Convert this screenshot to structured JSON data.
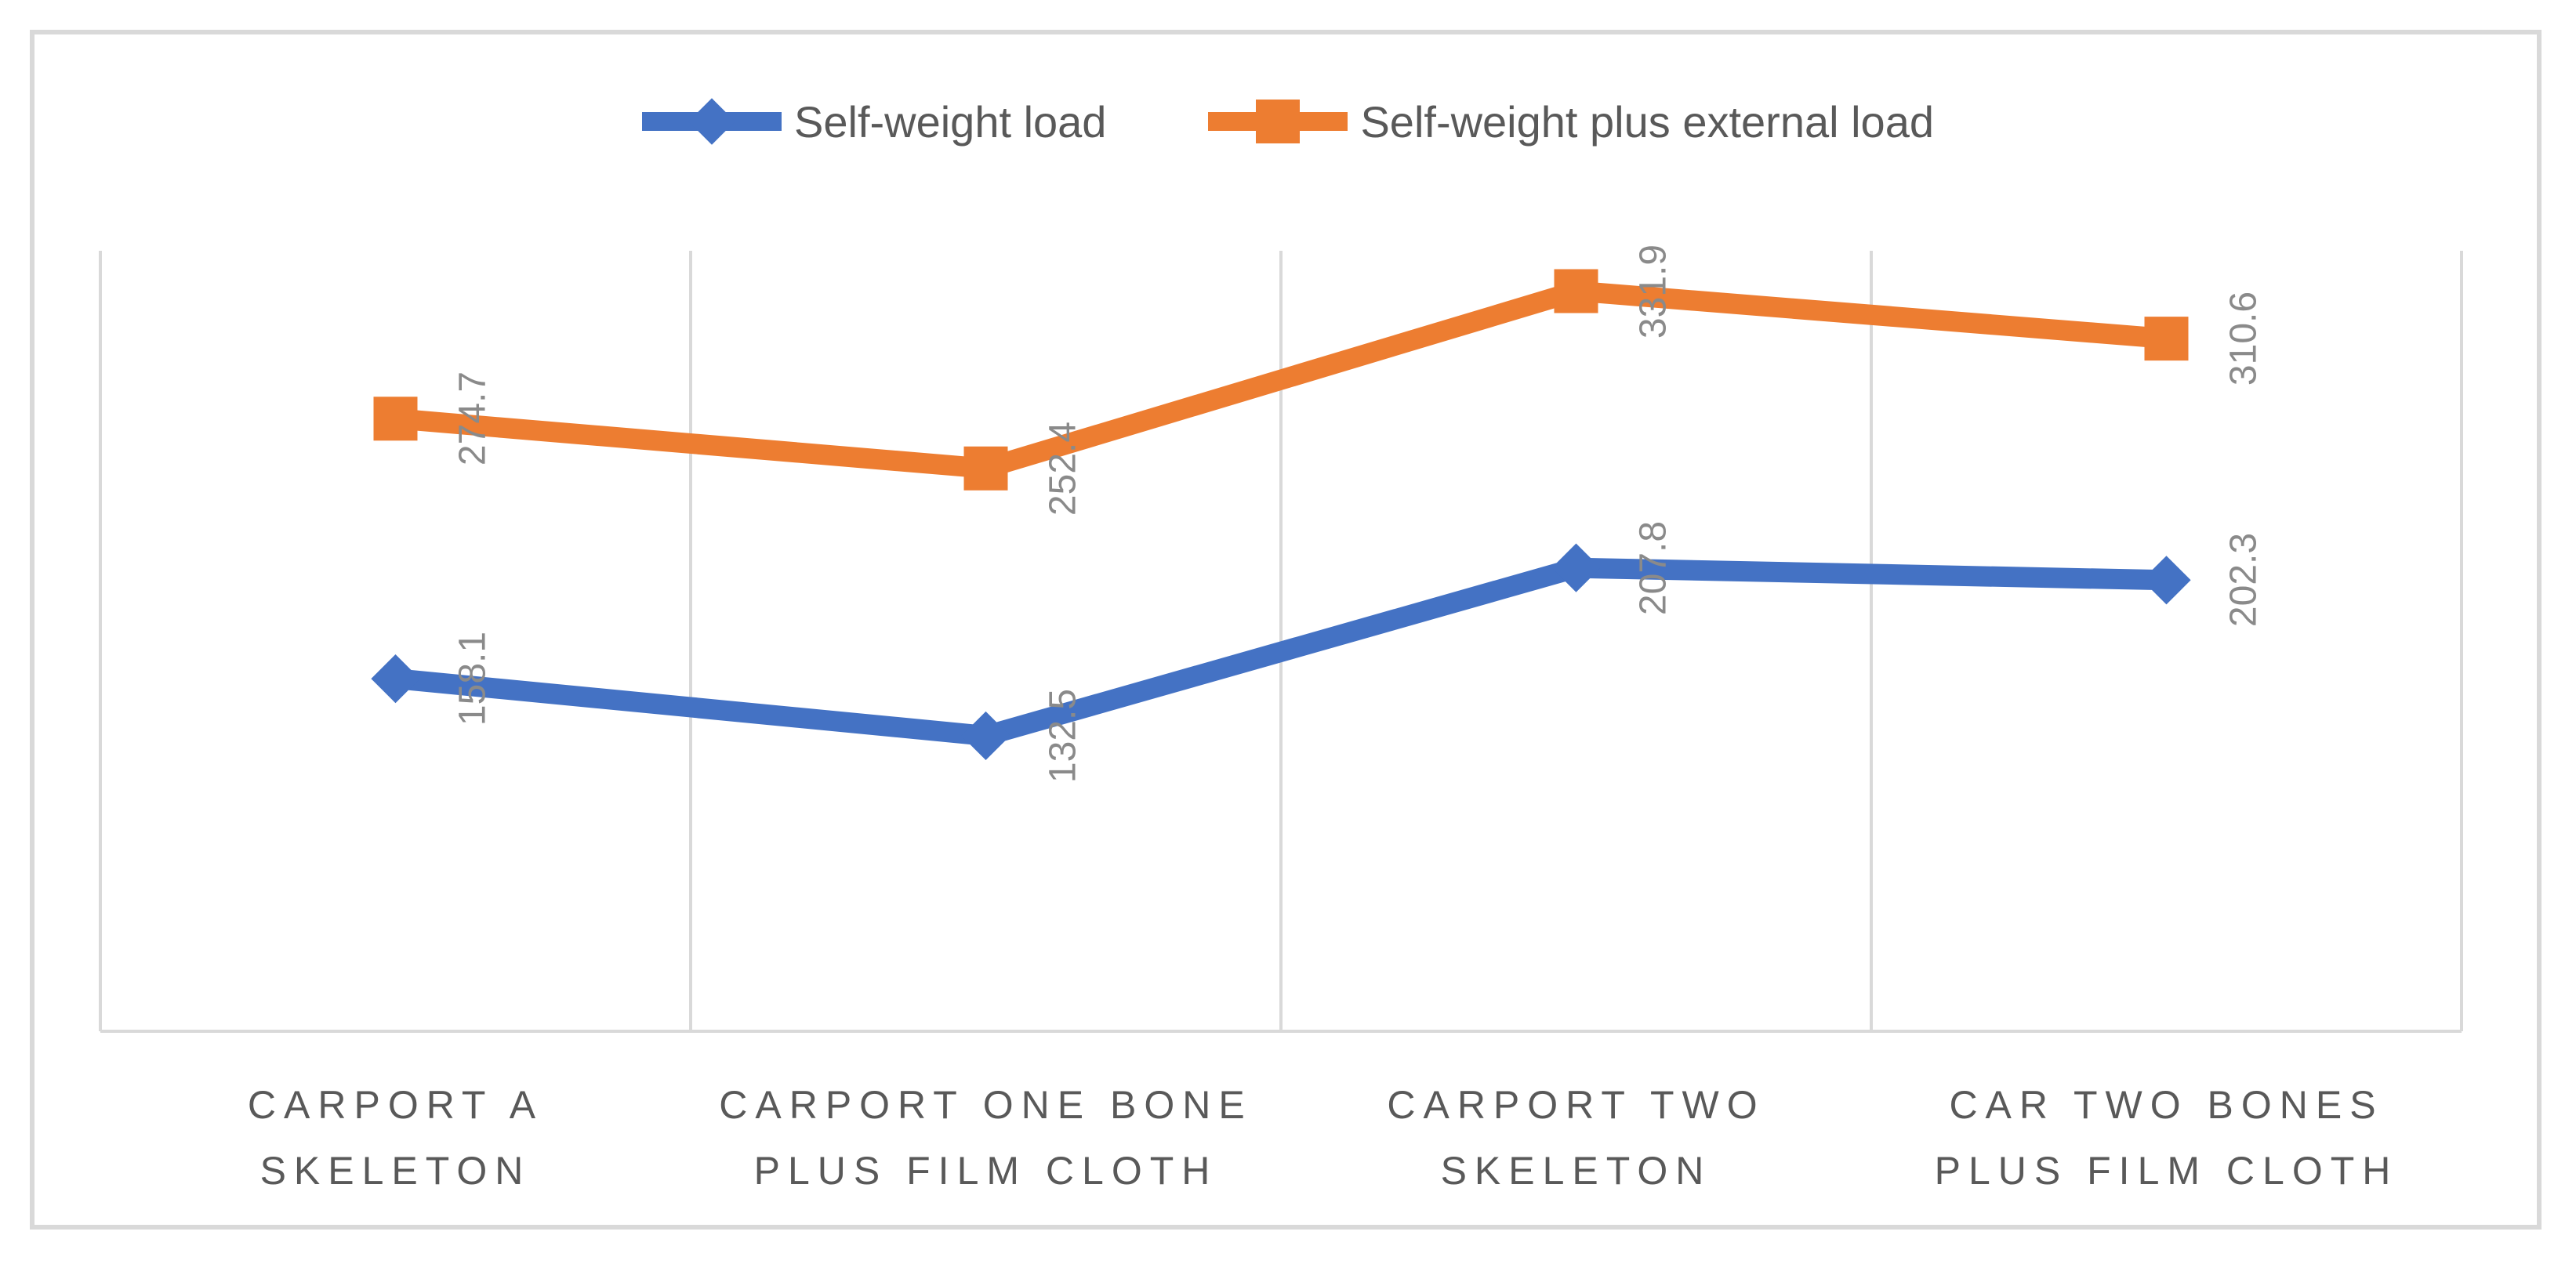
{
  "colors": {
    "series_blue": "#4472C4",
    "series_orange": "#ED7D31",
    "gridline": "#D9D9D9",
    "axis_line": "#D9D9D9",
    "chart_border": "#D9D9D9",
    "data_label_text": "#8A8A8A",
    "axis_text": "#595959",
    "legend_text": "#595959"
  },
  "legend": {
    "position": "top-center",
    "items": [
      {
        "label": "Self-weight load",
        "marker": "diamond",
        "color": "#4472C4"
      },
      {
        "label": "Self-weight plus external load",
        "marker": "square",
        "color": "#ED7D31"
      }
    ]
  },
  "chart_data": {
    "type": "line",
    "title": "",
    "xlabel": "",
    "ylabel": "",
    "categories": [
      "CARPORT A SKELETON",
      "CARPORT ONE BONE PLUS FILM CLOTH",
      "CARPORT TWO SKELETON",
      "CAR TWO BONES PLUS FILM CLOTH"
    ],
    "categories_display": [
      [
        "CARPORT A",
        "SKELETON"
      ],
      [
        "CARPORT ONE BONE",
        "PLUS FILM CLOTH"
      ],
      [
        "CARPORT TWO",
        "SKELETON"
      ],
      [
        "CAR TWO BONES",
        "PLUS FILM CLOTH"
      ]
    ],
    "series": [
      {
        "name": "Self-weight load",
        "color": "#4472C4",
        "marker": "diamond",
        "values": [
          158.1,
          132.5,
          207.8,
          202.3
        ],
        "data_labels": [
          "158.1",
          "132.5",
          "207.8",
          "202.3"
        ]
      },
      {
        "name": "Self-weight plus external load",
        "color": "#ED7D31",
        "marker": "square",
        "values": [
          274.7,
          252.4,
          331.9,
          310.6
        ],
        "data_labels": [
          "274.7",
          "252.4",
          "331.9",
          "310.6"
        ]
      }
    ],
    "data_label_rotation_deg": -90,
    "ylim": [
      0,
      350
    ],
    "y_axis_visible": false,
    "grid": "vertical-category-separators-only",
    "legend_position": "top"
  }
}
